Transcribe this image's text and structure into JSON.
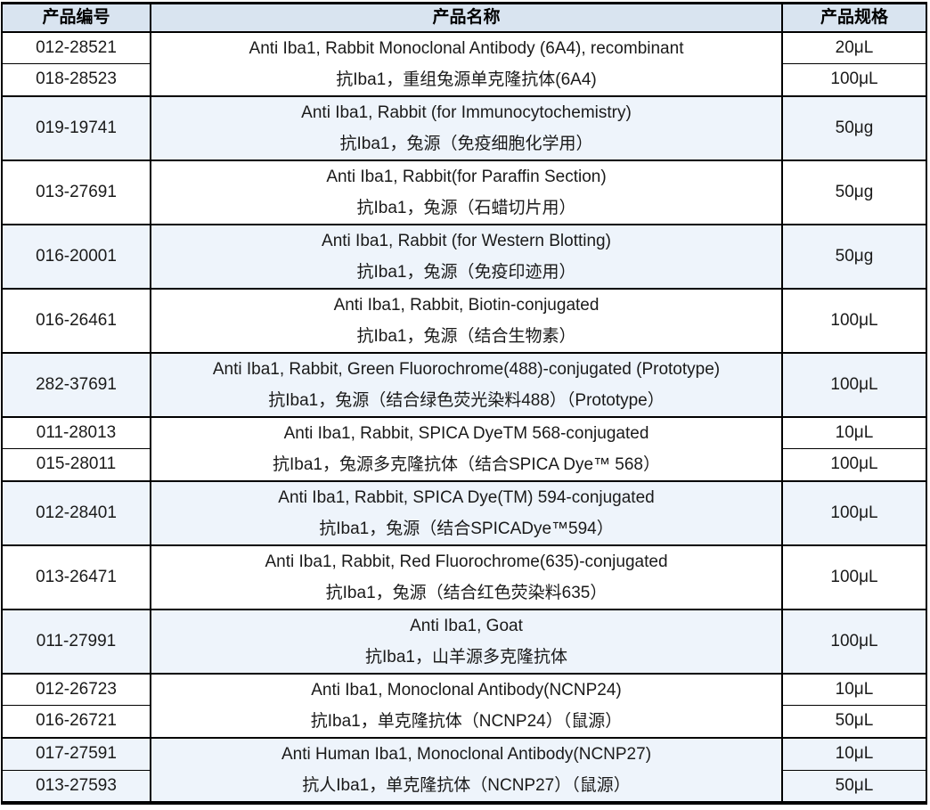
{
  "table": {
    "colors": {
      "header_bg": "#d9e4f0",
      "highlight_row_bg": "#eef4fb",
      "row_bg": "#ffffff",
      "border": "#000000",
      "text": "#1a1a1a"
    },
    "columns": [
      {
        "label": "产品编号"
      },
      {
        "label": "产品名称"
      },
      {
        "label": "产品规格"
      }
    ],
    "groups": [
      {
        "highlighted": false,
        "name_en": "Anti Iba1, Rabbit Monoclonal Antibody (6A4), recombinant",
        "name_zh": "抗Iba1，重组兔源单克隆抗体(6A4)",
        "items": [
          {
            "code": "012-28521",
            "spec": "20μL"
          },
          {
            "code": "018-28523",
            "spec": "100μL"
          }
        ]
      },
      {
        "highlighted": true,
        "name_en": "Anti Iba1, Rabbit (for Immunocytochemistry)",
        "name_zh": "抗Iba1，兔源（免疫细胞化学用）",
        "items": [
          {
            "code": "019-19741",
            "spec": "50μg"
          }
        ]
      },
      {
        "highlighted": false,
        "name_en": "Anti Iba1, Rabbit(for Paraffin Section)",
        "name_zh": "抗Iba1，兔源（石蜡切片用）",
        "items": [
          {
            "code": "013-27691",
            "spec": "50μg"
          }
        ]
      },
      {
        "highlighted": true,
        "name_en": "Anti Iba1, Rabbit (for Western Blotting)",
        "name_zh": "抗Iba1，兔源（免疫印迹用）",
        "items": [
          {
            "code": "016-20001",
            "spec": "50μg"
          }
        ]
      },
      {
        "highlighted": false,
        "name_en": "Anti Iba1, Rabbit, Biotin-conjugated",
        "name_zh": "抗Iba1，兔源（结合生物素）",
        "items": [
          {
            "code": "016-26461",
            "spec": "100μL"
          }
        ]
      },
      {
        "highlighted": true,
        "name_en": "Anti Iba1, Rabbit, Green Fluorochrome(488)-conjugated (Prototype)",
        "name_zh": "抗Iba1，兔源（结合绿色荧光染料488）（Prototype）",
        "items": [
          {
            "code": "282-37691",
            "spec": "100μL"
          }
        ]
      },
      {
        "highlighted": false,
        "name_en": "Anti Iba1, Rabbit, SPICA DyeTM 568-conjugated",
        "name_zh": "抗Iba1，兔源多克隆抗体（结合SPICA Dye™ 568）",
        "items": [
          {
            "code": "011-28013",
            "spec": "10μL"
          },
          {
            "code": "015-28011",
            "spec": "100μL"
          }
        ]
      },
      {
        "highlighted": true,
        "name_en": "Anti Iba1, Rabbit, SPICA Dye(TM) 594-conjugated",
        "name_zh": "抗Iba1，兔源（结合SPICADye™594）",
        "items": [
          {
            "code": "012-28401",
            "spec": "100μL"
          }
        ]
      },
      {
        "highlighted": false,
        "name_en": "Anti Iba1, Rabbit, Red Fluorochrome(635)-conjugated",
        "name_zh": "抗Iba1，兔源（结合红色荧染料635）",
        "items": [
          {
            "code": "013-26471",
            "spec": "100μL"
          }
        ]
      },
      {
        "highlighted": true,
        "name_en": "Anti Iba1, Goat",
        "name_zh": "抗Iba1，山羊源多克隆抗体",
        "items": [
          {
            "code": "011-27991",
            "spec": "100μL"
          }
        ]
      },
      {
        "highlighted": false,
        "name_en": "Anti Iba1, Monoclonal Antibody(NCNP24)",
        "name_zh": "抗Iba1，单克隆抗体（NCNP24）（鼠源）",
        "items": [
          {
            "code": "012-26723",
            "spec": "10μL"
          },
          {
            "code": "016-26721",
            "spec": "50μL"
          }
        ]
      },
      {
        "highlighted": true,
        "name_en": "Anti Human Iba1, Monoclonal Antibody(NCNP27)",
        "name_zh": "抗人Iba1，单克隆抗体（NCNP27）（鼠源）",
        "items": [
          {
            "code": "017-27591",
            "spec": "10μL"
          },
          {
            "code": "013-27593",
            "spec": "50μL"
          }
        ]
      }
    ]
  }
}
